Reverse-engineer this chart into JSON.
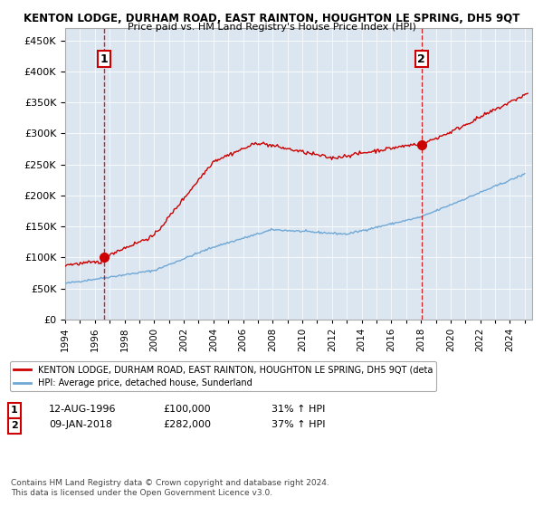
{
  "title1": "KENTON LODGE, DURHAM ROAD, EAST RAINTON, HOUGHTON LE SPRING, DH5 9QT",
  "title2": "Price paid vs. HM Land Registry's House Price Index (HPI)",
  "ylabel_ticks": [
    "£0",
    "£50K",
    "£100K",
    "£150K",
    "£200K",
    "£250K",
    "£300K",
    "£350K",
    "£400K",
    "£450K"
  ],
  "ylim": [
    0,
    470000
  ],
  "yticks": [
    0,
    50000,
    100000,
    150000,
    200000,
    250000,
    300000,
    350000,
    400000,
    450000
  ],
  "sale1_date": 1996.617,
  "sale1_price": 100000,
  "sale2_date": 2018.03,
  "sale2_price": 282000,
  "hpi_color": "#6fa8d6",
  "price_color": "#cc0000",
  "vline_color": "#cc0000",
  "background_hatch_color": "#e8e8f0",
  "grid_color": "#cccccc",
  "legend_label1": "KENTON LODGE, DURHAM ROAD, EAST RAINTON, HOUGHTON LE SPRING, DH5 9QT (deta",
  "legend_label2": "HPI: Average price, detached house, Sunderland",
  "annotation1_label": "1",
  "annotation2_label": "2",
  "note1_num": "1",
  "note1_date": "12-AUG-1996",
  "note1_price": "£100,000",
  "note1_pct": "31% ↑ HPI",
  "note2_num": "2",
  "note2_date": "09-JAN-2018",
  "note2_price": "£282,000",
  "note2_pct": "37% ↑ HPI",
  "copyright": "Contains HM Land Registry data © Crown copyright and database right 2024.\nThis data is licensed under the Open Government Licence v3.0."
}
